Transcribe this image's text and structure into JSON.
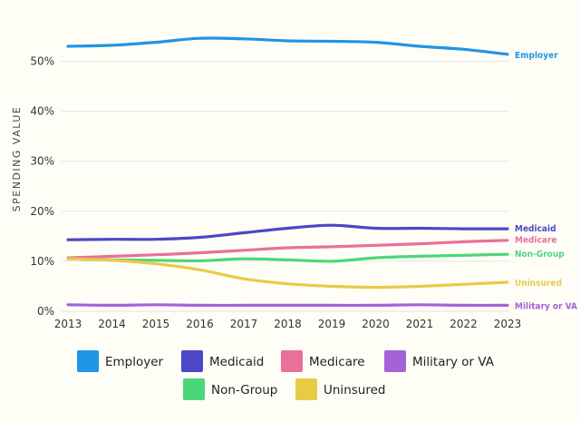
{
  "chart_data": {
    "type": "line",
    "ylabel": "SPENDING VALUE",
    "xlabel": "",
    "title": "",
    "x": [
      "2013",
      "2014",
      "2015",
      "2016",
      "2017",
      "2018",
      "2019",
      "2020",
      "2021",
      "2022",
      "2023"
    ],
    "ylim": [
      0,
      55
    ],
    "yticks": [
      0,
      10,
      20,
      30,
      40,
      50
    ],
    "ytick_labels": [
      "0%",
      "10%",
      "20%",
      "30%",
      "40%",
      "50%"
    ],
    "grid": true,
    "legend_position": "bottom",
    "series": [
      {
        "name": "Employer",
        "color": "#1f95e6",
        "values": [
          53.0,
          53.2,
          53.8,
          54.6,
          54.5,
          54.1,
          54.0,
          53.8,
          53.0,
          52.4,
          51.4
        ]
      },
      {
        "name": "Medicaid",
        "color": "#4b47c9",
        "values": [
          14.3,
          14.4,
          14.4,
          14.8,
          15.7,
          16.6,
          17.2,
          16.6,
          16.6,
          16.5,
          16.5
        ]
      },
      {
        "name": "Medicare",
        "color": "#ea6f9b",
        "values": [
          10.7,
          11.0,
          11.3,
          11.7,
          12.2,
          12.7,
          12.9,
          13.2,
          13.5,
          13.9,
          14.2
        ]
      },
      {
        "name": "Non-Group",
        "color": "#4cd67a",
        "values": [
          10.5,
          10.3,
          10.2,
          10.1,
          10.5,
          10.3,
          10.0,
          10.7,
          11.0,
          11.2,
          11.4
        ]
      },
      {
        "name": "Uninsured",
        "color": "#e8cb45",
        "values": [
          10.5,
          10.2,
          9.5,
          8.3,
          6.5,
          5.5,
          5.0,
          4.8,
          5.0,
          5.4,
          5.8
        ]
      },
      {
        "name": "Military or VA",
        "color": "#a462d9",
        "values": [
          1.3,
          1.2,
          1.3,
          1.2,
          1.2,
          1.2,
          1.2,
          1.2,
          1.3,
          1.2,
          1.2
        ]
      }
    ],
    "end_labels": [
      {
        "text": "Employer",
        "color": "#1f95e6",
        "value": 51.4
      },
      {
        "text": "Medicaid",
        "color": "#4b47c9",
        "value": 16.7
      },
      {
        "text": "Medicare",
        "color": "#ea6f9b",
        "value": 14.4
      },
      {
        "text": "Non-Group",
        "color": "#4cd67a",
        "value": 11.6
      },
      {
        "text": "Uninsured",
        "color": "#e8cb45",
        "value": 5.8
      },
      {
        "text": "Military or VA",
        "color": "#a462d9",
        "value": 1.2
      }
    ],
    "legend": [
      {
        "label": "Employer",
        "color": "#1f95e6"
      },
      {
        "label": "Medicaid",
        "color": "#4b47c9"
      },
      {
        "label": "Medicare",
        "color": "#ea6f9b"
      },
      {
        "label": "Military or VA",
        "color": "#a462d9"
      },
      {
        "label": "Non-Group",
        "color": "#4cd67a"
      },
      {
        "label": "Uninsured",
        "color": "#e8cb45"
      }
    ]
  }
}
